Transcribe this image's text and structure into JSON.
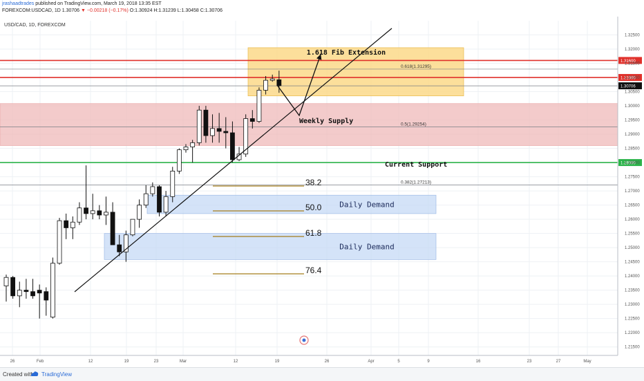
{
  "header": {
    "author": "jrashaadtrades",
    "published_text": "published on TradingView.com, March 19, 2018 13:35 EST",
    "symbol": "FOREXCOM:USDCAD, 1D",
    "last": "1.30706",
    "change": "−0.00218 (−0.17%)",
    "ohlc": "O:1.30924 H:1.31239 L:1.30458 C:1.30706"
  },
  "footer": {
    "created_with": "Created with",
    "brand": "TradingView"
  },
  "chart_data": {
    "type": "candlestick",
    "instrument_label": "USD/CAD, 1D, FOREXCOM",
    "ylim": [
      1.212,
      1.33
    ],
    "price_ticks": [
      "1.32500",
      "1.32000",
      "1.31500",
      "1.31000",
      "1.30500",
      "1.30000",
      "1.29500",
      "1.29000",
      "1.28500",
      "1.28000",
      "1.27500",
      "1.27000",
      "1.26500",
      "1.26000",
      "1.25500",
      "1.25000",
      "1.24500",
      "1.24000",
      "1.23500",
      "1.23000",
      "1.22500",
      "1.22000",
      "1.21500"
    ],
    "date_ticks": [
      "26",
      "Feb",
      "12",
      "19",
      "23",
      "Mar",
      "12",
      "19",
      "26",
      "Apr",
      "5",
      "9",
      "16",
      "23",
      "27",
      "May"
    ],
    "candles": [
      {
        "o": 1.2365,
        "h": 1.2405,
        "l": 1.231,
        "c": 1.2395
      },
      {
        "o": 1.2395,
        "h": 1.24,
        "l": 1.232,
        "c": 1.233
      },
      {
        "o": 1.233,
        "h": 1.238,
        "l": 1.229,
        "c": 1.235
      },
      {
        "o": 1.235,
        "h": 1.239,
        "l": 1.232,
        "c": 1.2345
      },
      {
        "o": 1.2345,
        "h": 1.239,
        "l": 1.232,
        "c": 1.233
      },
      {
        "o": 1.235,
        "h": 1.237,
        "l": 1.225,
        "c": 1.234
      },
      {
        "o": 1.2345,
        "h": 1.236,
        "l": 1.226,
        "c": 1.2315
      },
      {
        "o": 1.2255,
        "h": 1.2465,
        "l": 1.225,
        "c": 1.2445
      },
      {
        "o": 1.2445,
        "h": 1.2605,
        "l": 1.244,
        "c": 1.2595
      },
      {
        "o": 1.2595,
        "h": 1.262,
        "l": 1.253,
        "c": 1.257
      },
      {
        "o": 1.257,
        "h": 1.261,
        "l": 1.253,
        "c": 1.259
      },
      {
        "o": 1.259,
        "h": 1.266,
        "l": 1.258,
        "c": 1.264
      },
      {
        "o": 1.264,
        "h": 1.279,
        "l": 1.26,
        "c": 1.262
      },
      {
        "o": 1.262,
        "h": 1.269,
        "l": 1.26,
        "c": 1.263
      },
      {
        "o": 1.263,
        "h": 1.265,
        "l": 1.26,
        "c": 1.2615
      },
      {
        "o": 1.2615,
        "h": 1.268,
        "l": 1.258,
        "c": 1.2625
      },
      {
        "o": 1.2625,
        "h": 1.266,
        "l": 1.252,
        "c": 1.251
      },
      {
        "o": 1.251,
        "h": 1.2545,
        "l": 1.247,
        "c": 1.2485
      },
      {
        "o": 1.2485,
        "h": 1.256,
        "l": 1.245,
        "c": 1.2545
      },
      {
        "o": 1.2545,
        "h": 1.26,
        "l": 1.254,
        "c": 1.26
      },
      {
        "o": 1.26,
        "h": 1.267,
        "l": 1.257,
        "c": 1.265
      },
      {
        "o": 1.265,
        "h": 1.272,
        "l": 1.264,
        "c": 1.269
      },
      {
        "o": 1.269,
        "h": 1.273,
        "l": 1.268,
        "c": 1.2715
      },
      {
        "o": 1.2715,
        "h": 1.272,
        "l": 1.261,
        "c": 1.2625
      },
      {
        "o": 1.2625,
        "h": 1.27,
        "l": 1.261,
        "c": 1.268
      },
      {
        "o": 1.268,
        "h": 1.2785,
        "l": 1.266,
        "c": 1.277
      },
      {
        "o": 1.277,
        "h": 1.285,
        "l": 1.276,
        "c": 1.2845
      },
      {
        "o": 1.2845,
        "h": 1.2865,
        "l": 1.2835,
        "c": 1.2855
      },
      {
        "o": 1.2855,
        "h": 1.288,
        "l": 1.28,
        "c": 1.287
      },
      {
        "o": 1.287,
        "h": 1.3,
        "l": 1.286,
        "c": 1.2985
      },
      {
        "o": 1.2985,
        "h": 1.3,
        "l": 1.287,
        "c": 1.2895
      },
      {
        "o": 1.2895,
        "h": 1.297,
        "l": 1.287,
        "c": 1.292
      },
      {
        "o": 1.292,
        "h": 1.2975,
        "l": 1.287,
        "c": 1.291
      },
      {
        "o": 1.291,
        "h": 1.296,
        "l": 1.285,
        "c": 1.2905
      },
      {
        "o": 1.2905,
        "h": 1.2945,
        "l": 1.28,
        "c": 1.281
      },
      {
        "o": 1.281,
        "h": 1.2855,
        "l": 1.2805,
        "c": 1.283
      },
      {
        "o": 1.283,
        "h": 1.297,
        "l": 1.282,
        "c": 1.2955
      },
      {
        "o": 1.2955,
        "h": 1.2985,
        "l": 1.292,
        "c": 1.2945
      },
      {
        "o": 1.2945,
        "h": 1.3065,
        "l": 1.294,
        "c": 1.3055
      },
      {
        "o": 1.3055,
        "h": 1.3105,
        "l": 1.304,
        "c": 1.309
      },
      {
        "o": 1.309,
        "h": 1.311,
        "l": 1.3085,
        "c": 1.3095
      },
      {
        "o": 1.3092,
        "h": 1.3124,
        "l": 1.3046,
        "c": 1.3071
      }
    ],
    "zones": [
      {
        "name": "Weekly Supply",
        "top": 1.3008,
        "bottom": 1.286,
        "color": "#efb9b9"
      },
      {
        "name": "Daily Demand",
        "top": 1.2685,
        "bottom": 1.262,
        "color": "#c6d9f5"
      },
      {
        "name": "Daily Demand",
        "top": 1.255,
        "bottom": 1.2458,
        "color": "#c6d9f5"
      }
    ],
    "target_box": {
      "label": "1.618 Fib Extension",
      "top": 1.3205,
      "bottom": 1.3035,
      "color": "#fbd98a"
    },
    "hlines": [
      {
        "price": 1.316,
        "color": "#e0312b",
        "label": "1.31600"
      },
      {
        "price": 1.31,
        "color": "#e0312b",
        "label": "1.31000"
      },
      {
        "price": 1.28,
        "color": "#2bb34a",
        "label": "1.28000"
      }
    ],
    "current_price_label": "1.30706",
    "fib_levels": [
      {
        "label": "0.618(1.31295)",
        "price": 1.31295
      },
      {
        "label": "0.5(1.29254)",
        "price": 1.29254
      },
      {
        "label": "0.382(1.27213)",
        "price": 1.27213
      }
    ],
    "retracements": [
      "38.2",
      "50.0",
      "61.8",
      "76.4"
    ],
    "annotations": {
      "current_support": "Current Support",
      "weekly_supply": "Weekly Supply"
    }
  },
  "colors": {
    "bg": "#ffffff",
    "grid": "#eef1f4",
    "axis": "#b8bec6",
    "candle_bull": "#ffffff",
    "candle_bear": "#111111"
  }
}
